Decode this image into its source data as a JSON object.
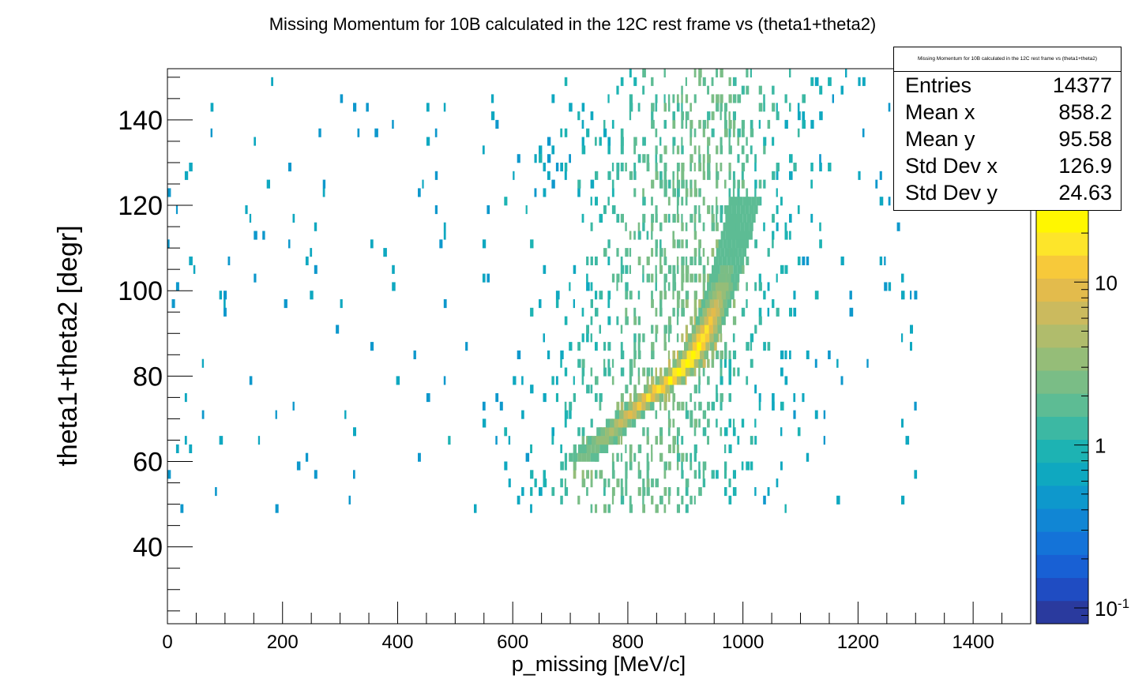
{
  "chart_data": {
    "type": "heatmap",
    "title": "Missing Momentum for 10B calculated in the 12C rest frame vs (theta1+theta2)",
    "xlabel": "p_missing [MeV/c]",
    "ylabel": "theta1+theta2 [degr]",
    "xlim": [
      0,
      1500
    ],
    "ylim": [
      22,
      152
    ],
    "x_ticks": [
      "0",
      "200",
      "400",
      "600",
      "800",
      "1000",
      "1200",
      "1400"
    ],
    "y_ticks": [
      "40",
      "60",
      "80",
      "100",
      "120",
      "140"
    ],
    "z_scale": "log",
    "z_range": [
      0.08,
      28
    ],
    "z_ticks": [
      "10",
      "1"
    ],
    "z_tick_exp": "10^-1",
    "stats": {
      "title": "Missing Momentum for 10B calculated in the 12C rest frame vs (theta1+theta2)",
      "rows": [
        {
          "label": "Entries",
          "value": "14377"
        },
        {
          "label": "Mean x",
          "value": "858.2"
        },
        {
          "label": "Mean y",
          "value": "95.58"
        },
        {
          "label": "Std Dev x",
          "value": "126.9"
        },
        {
          "label": "Std Dev y",
          "value": "24.63"
        }
      ]
    },
    "ridge": {
      "description_points_x": [
        720,
        760,
        800,
        840,
        870,
        900,
        920,
        940,
        960,
        980,
        1000
      ],
      "description_points_y": [
        60,
        65,
        70,
        75,
        78,
        82,
        86,
        92,
        100,
        110,
        120
      ]
    },
    "palette": [
      "#2a3a9e",
      "#1f4cc2",
      "#1860d4",
      "#1473d8",
      "#1186d4",
      "#0e98cc",
      "#0fa8c0",
      "#1db3b3",
      "#3cb8a3",
      "#5dbc94",
      "#7abd86",
      "#95bd78",
      "#b0bc6c",
      "#cbba5e",
      "#e3bb4c",
      "#f7c93a",
      "#fde52a",
      "#fff700"
    ]
  }
}
